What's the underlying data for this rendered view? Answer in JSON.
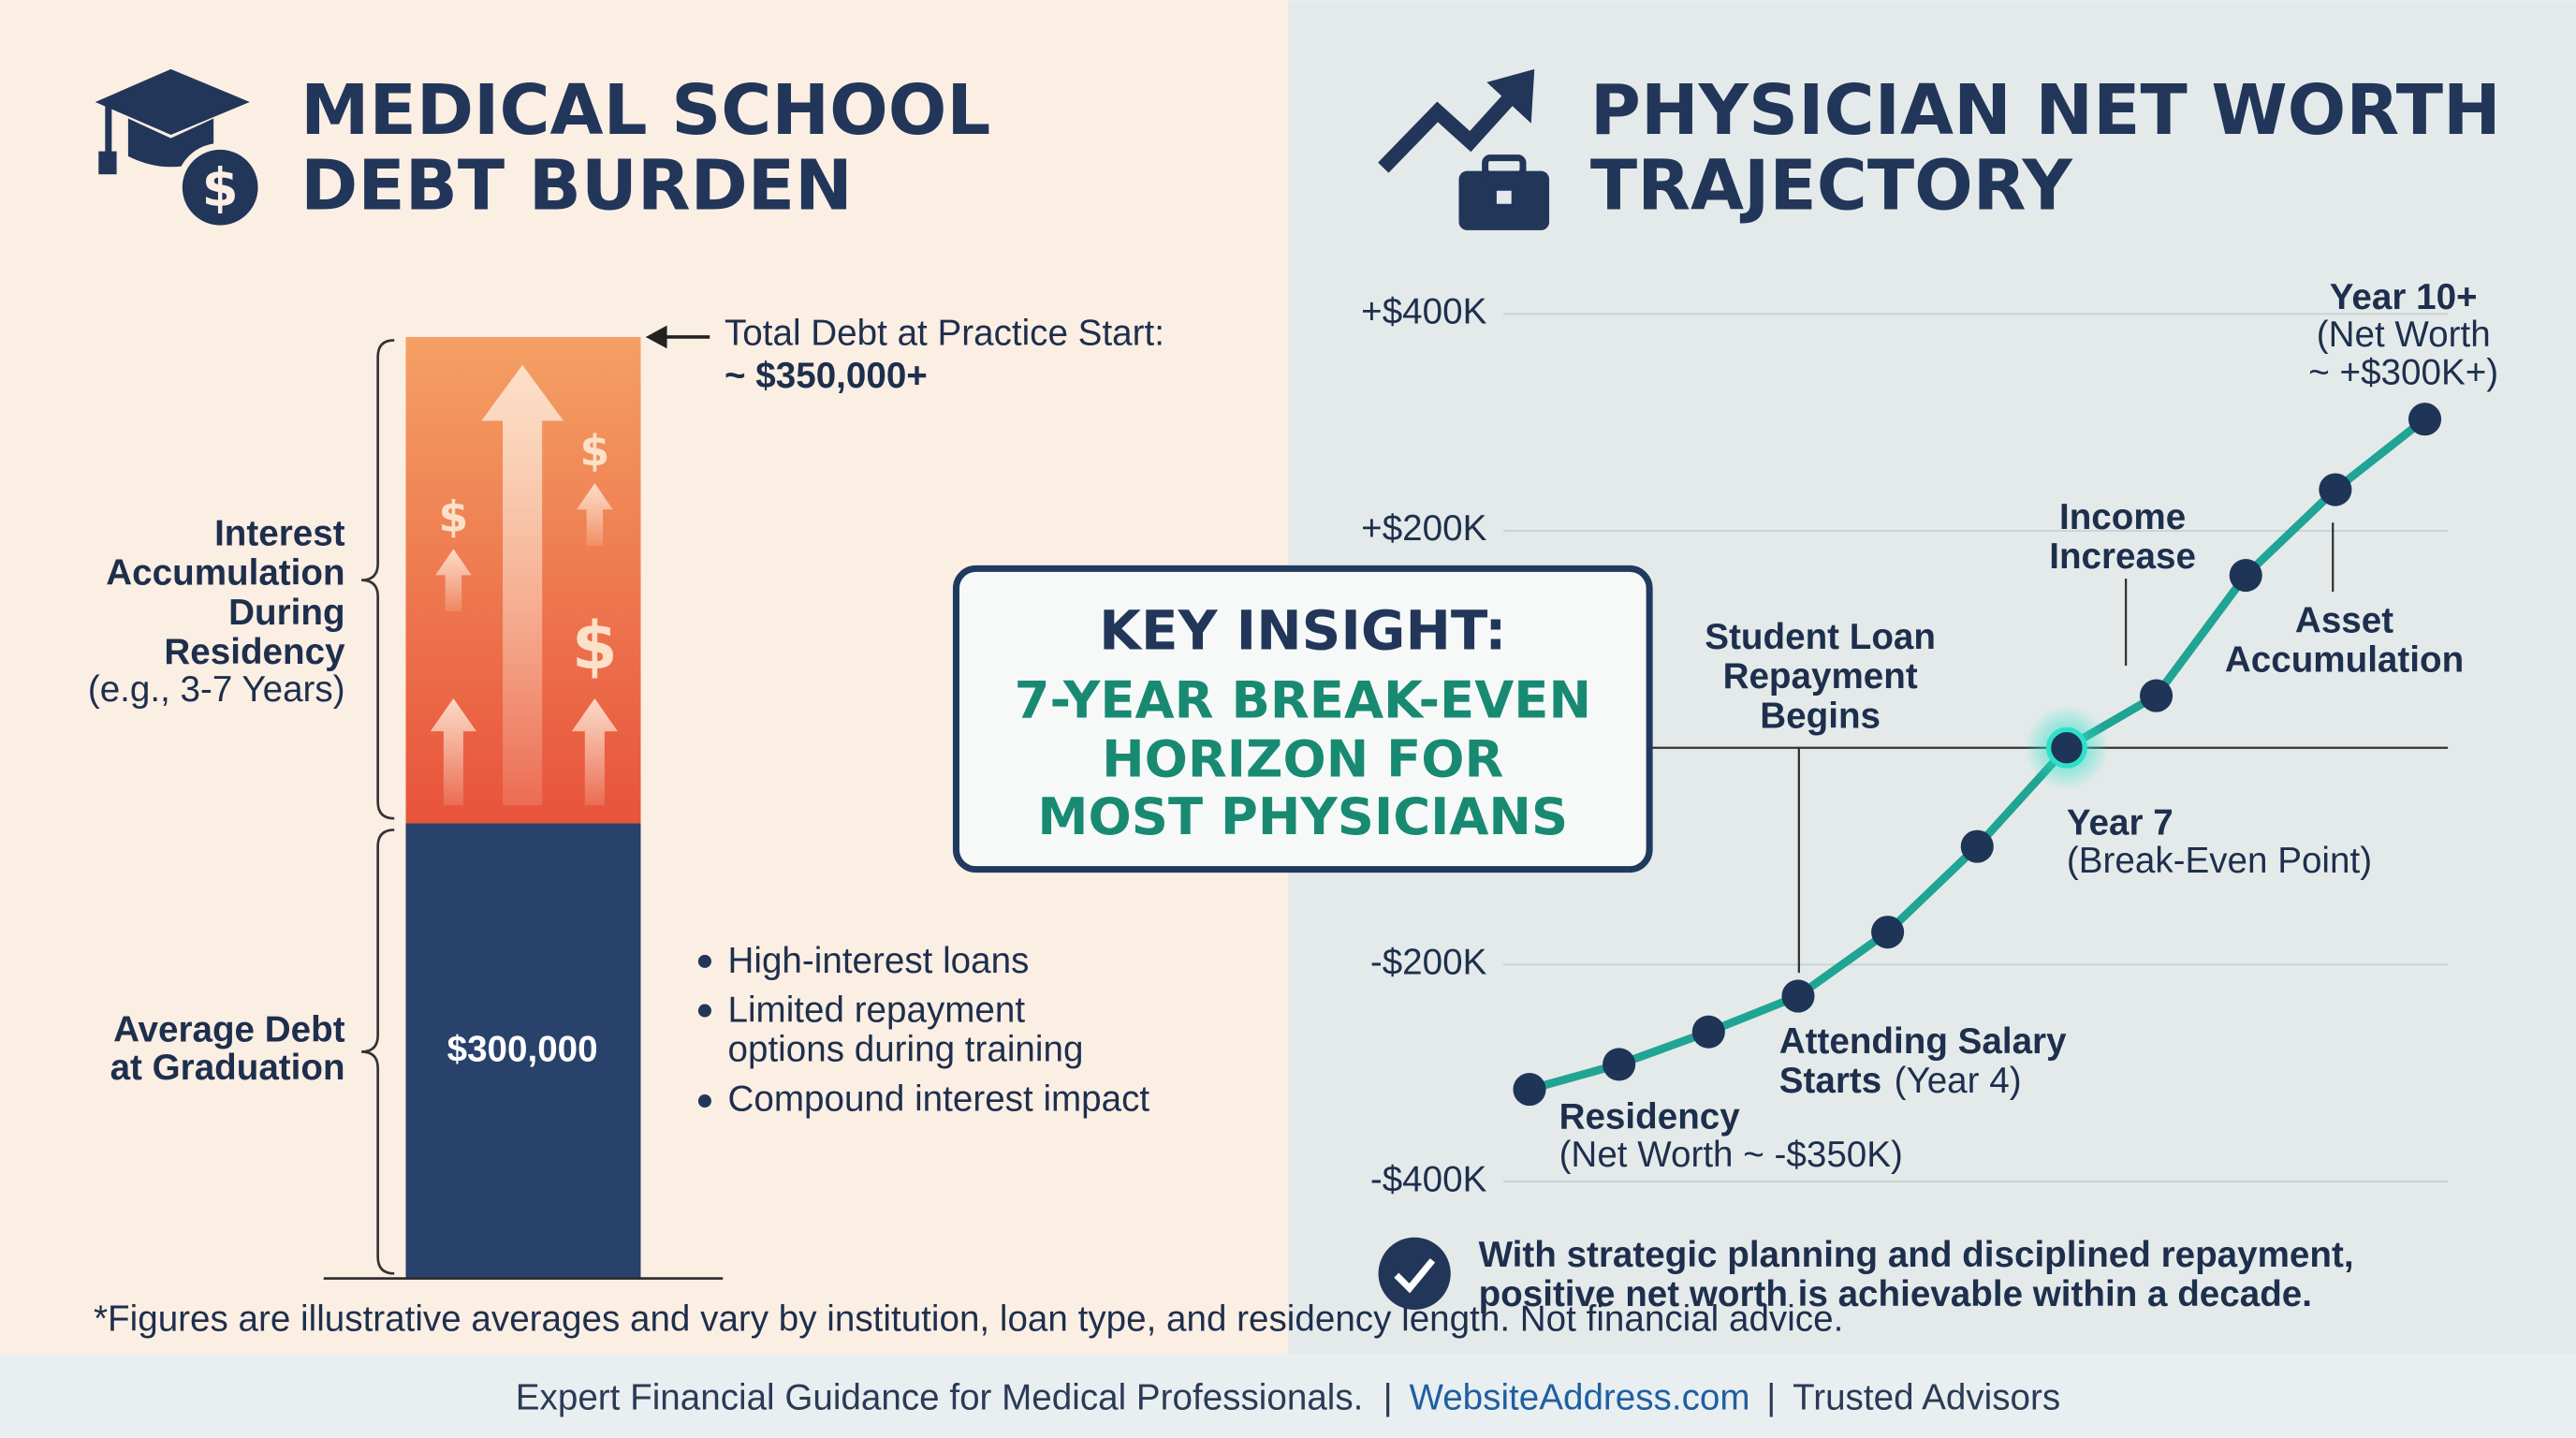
{
  "left_panel": {
    "title": [
      "MEDICAL SCHOOL",
      "DEBT BURDEN"
    ],
    "total_label": "Total Debt at Practice Start:",
    "total_value": "~ $350,000+",
    "interest_label": [
      "Interest",
      "Accumulation",
      "During",
      "Residency"
    ],
    "interest_note": "(e.g., 3-7 Years)",
    "average_label": [
      "Average Debt",
      "at Graduation"
    ],
    "bar_value": "$300,000",
    "bullets": [
      [
        "High-interest loans"
      ],
      [
        "Limited repayment",
        "options during training"
      ],
      [
        "Compound interest impact"
      ]
    ],
    "note": "*Figures are illustrative averages and vary by institution, loan type, and residency length. Not financial advice."
  },
  "right_panel": {
    "title": [
      "PHYSICIAN NET WORTH",
      "TRAJECTORY"
    ],
    "key_insight": {
      "title": "KEY INSIGHT:",
      "lines": [
        "7-YEAR BREAK-EVEN",
        "HORIZON FOR",
        "MOST PHYSICIANS"
      ]
    },
    "conclusion": [
      "With strategic planning and disciplined repayment,",
      "positive net worth is achievable within a decade."
    ]
  },
  "chart_data": {
    "type": "line",
    "series": [
      {
        "color": "#20a494",
        "marker_color": "#1e3558",
        "values": [
          -315000,
          -292000,
          -262000,
          -229000,
          -170000,
          -91000,
          0,
          48000,
          159000,
          238000,
          303000
        ]
      }
    ],
    "ylim": [
      -400000,
      400000
    ],
    "yticks": [
      {
        "value": -400000,
        "label": "-$400K"
      },
      {
        "value": -200000,
        "label": "-$200K"
      },
      {
        "value": 200000,
        "label": "+$200K"
      },
      {
        "value": 400000,
        "label": "+$400K"
      }
    ],
    "grid": true,
    "annotations": [
      {
        "title": [
          "Year 10+"
        ],
        "text": [
          "(Net Worth",
          "~ +$300K+)"
        ]
      },
      {
        "title": [
          "Income",
          "Increase"
        ],
        "text": []
      },
      {
        "title": [
          "Asset",
          "Accumulation"
        ],
        "text": []
      },
      {
        "title": [
          "Student Loan",
          "Repayment",
          "Begins"
        ],
        "text": []
      },
      {
        "title": [
          "Year 7"
        ],
        "text": [
          "(Break-Even Point)"
        ]
      },
      {
        "title": [
          "Attending Salary",
          "Starts"
        ],
        "text": [
          "(Year 4)"
        ]
      },
      {
        "title": [
          "Residency"
        ],
        "text": [
          "(Net Worth ~ -$350K)"
        ]
      }
    ]
  },
  "footer": [
    "Expert Financial Guidance for Medical Professionals.",
    "|",
    "WebsiteAddress.com",
    "|",
    "Trusted Advisors"
  ]
}
